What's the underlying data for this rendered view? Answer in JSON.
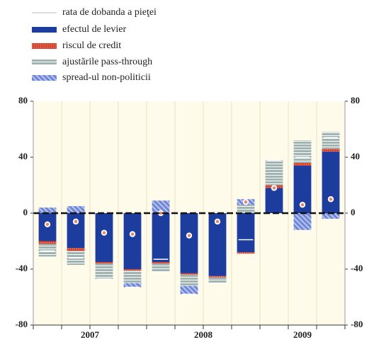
{
  "chart_data": {
    "type": "stacked_bar",
    "categories": [
      null,
      null,
      null,
      null,
      null,
      null,
      null,
      null,
      null,
      null,
      null
    ],
    "year_labels": [
      "2007",
      "2008",
      "2009"
    ],
    "year_spans": [
      4,
      4,
      3
    ],
    "series": [
      {
        "name": "rata de dobanda a pieţei",
        "kind": "tick",
        "color": "#ffffff",
        "values": [
          -27,
          -32,
          -47,
          -53,
          -33,
          -58,
          -50,
          -19,
          38,
          40,
          54
        ]
      },
      {
        "name": "efectul de levier",
        "kind": "bar",
        "color": "#1c3c9e",
        "values": [
          -20,
          -25,
          -35,
          -40,
          -35,
          -43,
          -45,
          -28,
          18,
          34,
          44
        ]
      },
      {
        "name": "riscul de credit",
        "kind": "bar",
        "color": "#d9442e",
        "values": [
          -2,
          -2,
          -1,
          -1,
          -1,
          -1,
          -1,
          -1,
          2,
          2,
          2
        ]
      },
      {
        "name": "ajustările pass-through",
        "kind": "bar",
        "color": "#9fb3b0",
        "values": [
          -9,
          -10,
          -11,
          -9,
          -6,
          -8,
          -4,
          6,
          18,
          16,
          12
        ]
      },
      {
        "name": "spread-ul non-politicii",
        "kind": "bar",
        "color": "#6f86d6",
        "values": [
          4,
          5,
          0,
          -3,
          9,
          -6,
          0,
          4,
          0,
          -12,
          -4
        ]
      },
      {
        "name": "spread-ul non-politicii",
        "kind": "dot",
        "color": "#ef7f68",
        "values": [
          -8,
          -6,
          -14,
          -15,
          0,
          -16,
          -6,
          8,
          18,
          6,
          10
        ]
      }
    ],
    "ylim": [
      -80,
      80
    ],
    "yticks": [
      -80,
      -40,
      0,
      40,
      80
    ],
    "grid": true
  }
}
